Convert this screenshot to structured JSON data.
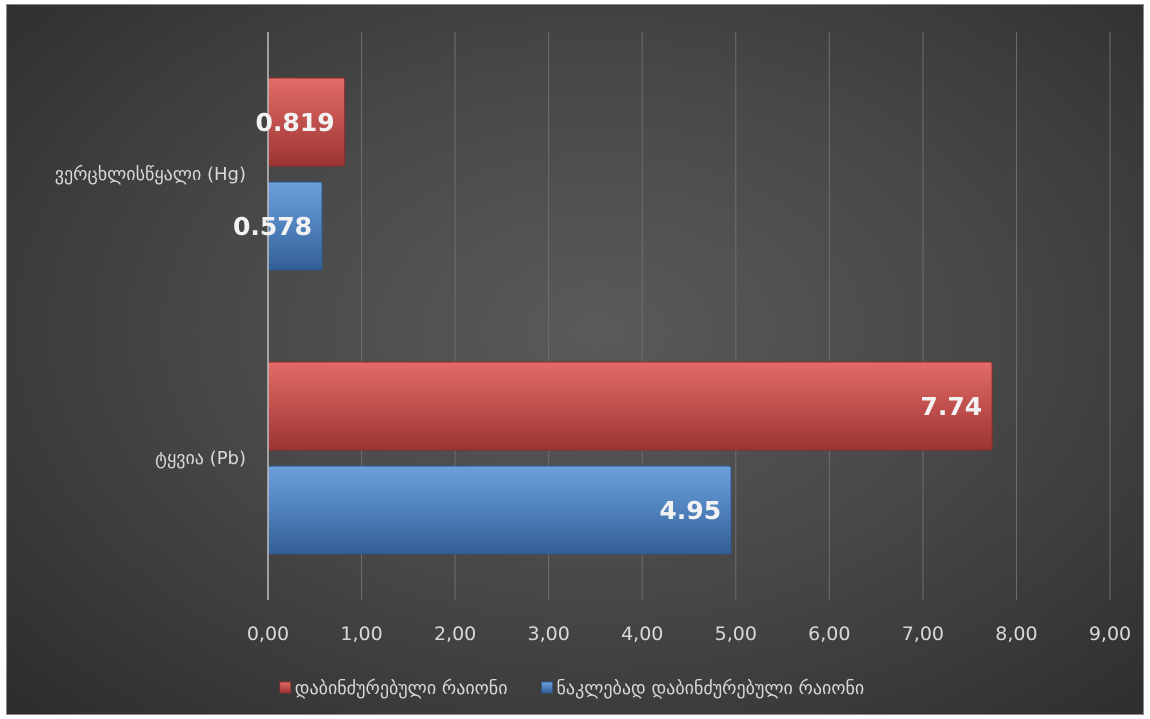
{
  "chart_data": {
    "type": "bar",
    "orientation": "horizontal",
    "categories": [
      "ვერცხლისწყალი (Hg)",
      "ტყვია (Pb)"
    ],
    "series": [
      {
        "name": "დაბინძურებული რაიონი",
        "values": [
          0.819,
          7.74
        ],
        "labels": [
          "0.819",
          "7.74"
        ],
        "color": "#c0504d"
      },
      {
        "name": "ნაკლებად დაბინძურებული რაიონი",
        "values": [
          0.578,
          4.95
        ],
        "labels": [
          "0.578",
          "4.95"
        ],
        "color": "#4f81bd"
      }
    ],
    "xlim": [
      0,
      9
    ],
    "xticks": [
      "0,00",
      "1,00",
      "2,00",
      "3,00",
      "4,00",
      "5,00",
      "6,00",
      "7,00",
      "8,00",
      "9,00"
    ],
    "grid": true,
    "legend": "bottom"
  }
}
